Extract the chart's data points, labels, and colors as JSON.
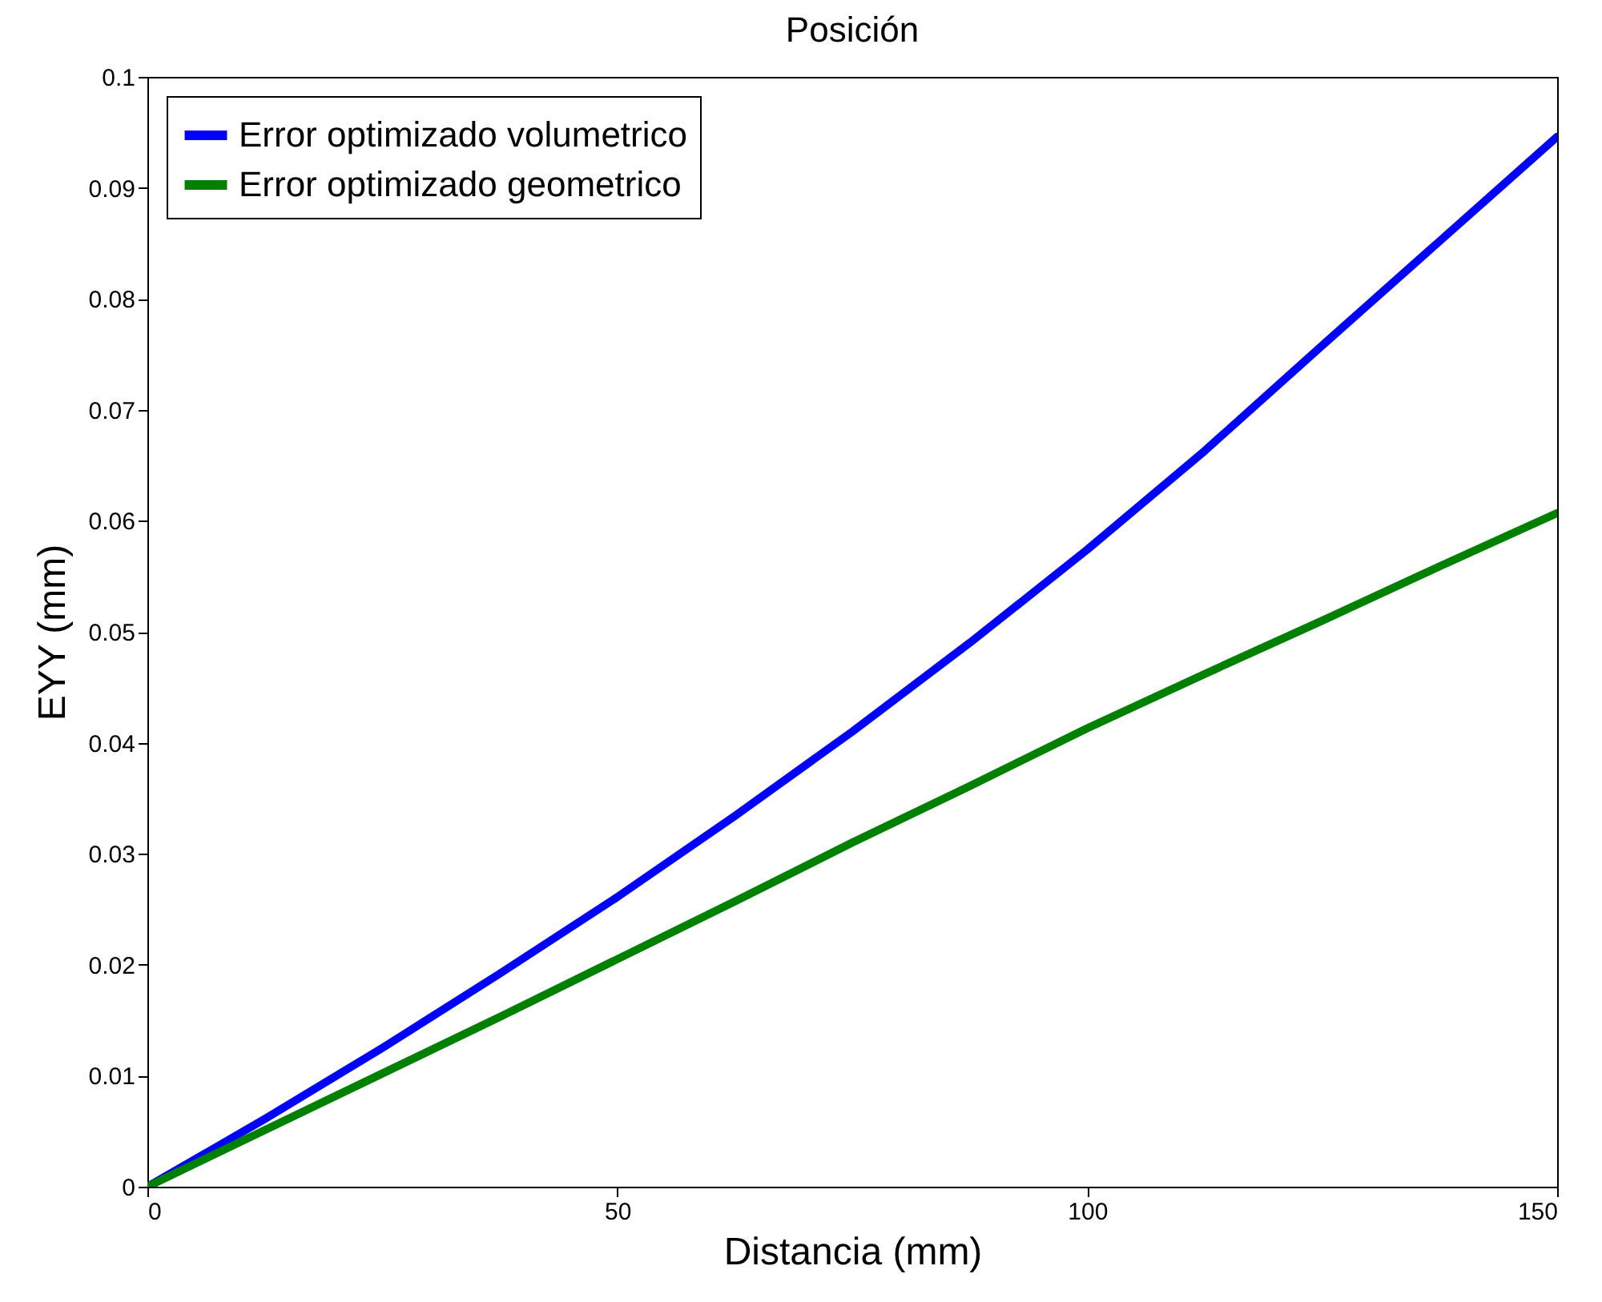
{
  "chart_data": {
    "type": "line",
    "title": "Posición",
    "xlabel": "Distancia (mm)",
    "ylabel": "EYY (mm)",
    "x": [
      0,
      12.5,
      25,
      37.5,
      50,
      62.5,
      75,
      87.5,
      100,
      112.5,
      125,
      137.5,
      150
    ],
    "series": [
      {
        "name": "Error optimizado volumetrico",
        "color": "#0000ff",
        "values": [
          0,
          0.0061,
          0.0125,
          0.0192,
          0.0261,
          0.0334,
          0.041,
          0.049,
          0.0574,
          0.0663,
          0.0758,
          0.0852,
          0.0946
        ]
      },
      {
        "name": "Error optimizado geometrico",
        "color": "#008000",
        "values": [
          0,
          0.0051,
          0.0102,
          0.0153,
          0.0205,
          0.0257,
          0.031,
          0.0361,
          0.0413,
          0.0462,
          0.051,
          0.0559,
          0.0607
        ]
      }
    ],
    "xlim": [
      0,
      150
    ],
    "xticks": [
      0,
      50,
      100,
      150
    ],
    "ylim": [
      0,
      0.1
    ],
    "yticks": [
      0,
      0.01,
      0.02,
      0.03,
      0.04,
      0.05,
      0.06,
      0.07,
      0.08,
      0.09,
      0.1
    ],
    "grid": false,
    "legend": "top left",
    "marker": "none",
    "line_style": "solid"
  }
}
